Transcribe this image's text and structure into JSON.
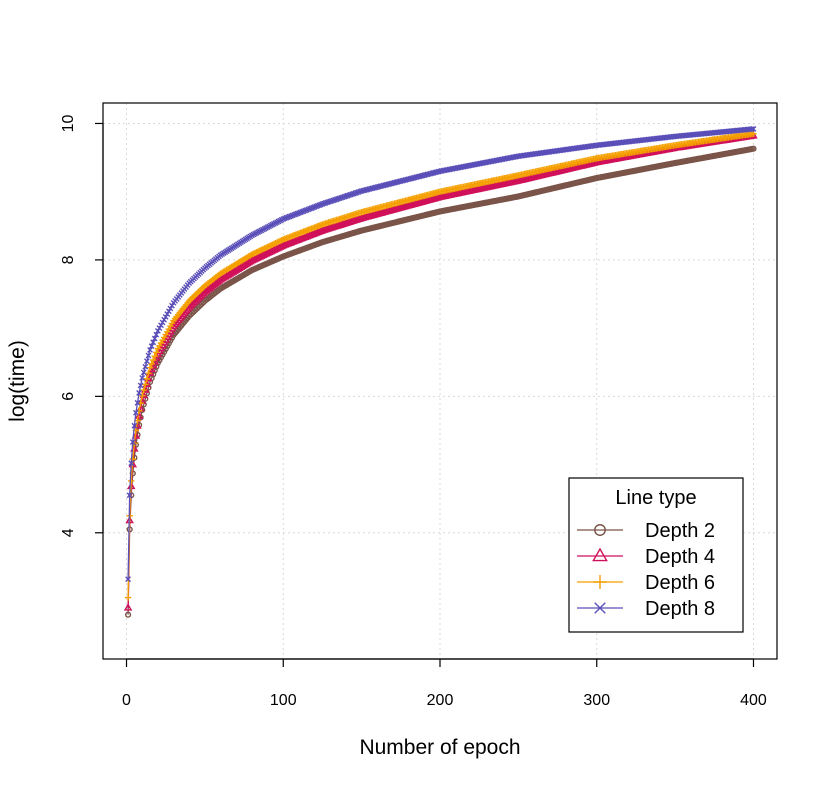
{
  "chart_data": {
    "type": "line",
    "xlabel": "Number of epoch",
    "ylabel": "log(time)",
    "xlim": [
      -15,
      415
    ],
    "ylim": [
      2.15,
      10.3
    ],
    "xticks": [
      0,
      100,
      200,
      300,
      400
    ],
    "yticks": [
      4,
      6,
      8,
      10
    ],
    "grid": true,
    "legend": {
      "title": "Line type",
      "placement": "bottom-right"
    },
    "series": [
      {
        "name": "Depth 2",
        "color": "#7a5448",
        "marker": "circle",
        "x": [
          1,
          2,
          3,
          4,
          5,
          6,
          8,
          10,
          15,
          20,
          30,
          40,
          50,
          60,
          80,
          100,
          125,
          150,
          200,
          250,
          300,
          350,
          400
        ],
        "y": [
          2.8,
          4.05,
          4.55,
          4.87,
          5.1,
          5.29,
          5.58,
          5.8,
          6.21,
          6.49,
          6.9,
          7.18,
          7.4,
          7.58,
          7.85,
          8.05,
          8.26,
          8.43,
          8.71,
          8.93,
          9.2,
          9.42,
          9.63
        ]
      },
      {
        "name": "Depth 4",
        "color": "#d0105a",
        "marker": "triangle",
        "x": [
          1,
          2,
          3,
          4,
          5,
          6,
          8,
          10,
          15,
          20,
          30,
          40,
          50,
          60,
          80,
          100,
          125,
          150,
          200,
          250,
          300,
          350,
          400
        ],
        "y": [
          2.9,
          4.18,
          4.68,
          5.0,
          5.23,
          5.42,
          5.71,
          5.93,
          6.34,
          6.62,
          7.03,
          7.31,
          7.53,
          7.71,
          7.99,
          8.21,
          8.43,
          8.61,
          8.92,
          9.16,
          9.43,
          9.64,
          9.82
        ]
      },
      {
        "name": "Depth 6",
        "color": "#f5a000",
        "marker": "plus",
        "x": [
          1,
          2,
          3,
          4,
          5,
          6,
          8,
          10,
          15,
          20,
          30,
          40,
          50,
          60,
          80,
          100,
          125,
          150,
          200,
          250,
          300,
          350,
          400
        ],
        "y": [
          3.05,
          4.25,
          4.76,
          5.08,
          5.31,
          5.5,
          5.79,
          6.01,
          6.42,
          6.7,
          7.11,
          7.4,
          7.62,
          7.8,
          8.08,
          8.3,
          8.52,
          8.7,
          9.0,
          9.24,
          9.49,
          9.68,
          9.85
        ]
      },
      {
        "name": "Depth 8",
        "color": "#5a4fb8",
        "marker": "cross",
        "x": [
          1,
          2,
          3,
          4,
          5,
          6,
          8,
          10,
          15,
          20,
          30,
          40,
          50,
          60,
          80,
          100,
          125,
          150,
          200,
          250,
          300,
          350,
          400
        ],
        "y": [
          3.32,
          4.55,
          5.02,
          5.33,
          5.57,
          5.76,
          6.05,
          6.27,
          6.68,
          6.96,
          7.37,
          7.66,
          7.88,
          8.07,
          8.36,
          8.6,
          8.82,
          9.01,
          9.3,
          9.52,
          9.68,
          9.81,
          9.92
        ]
      }
    ]
  }
}
